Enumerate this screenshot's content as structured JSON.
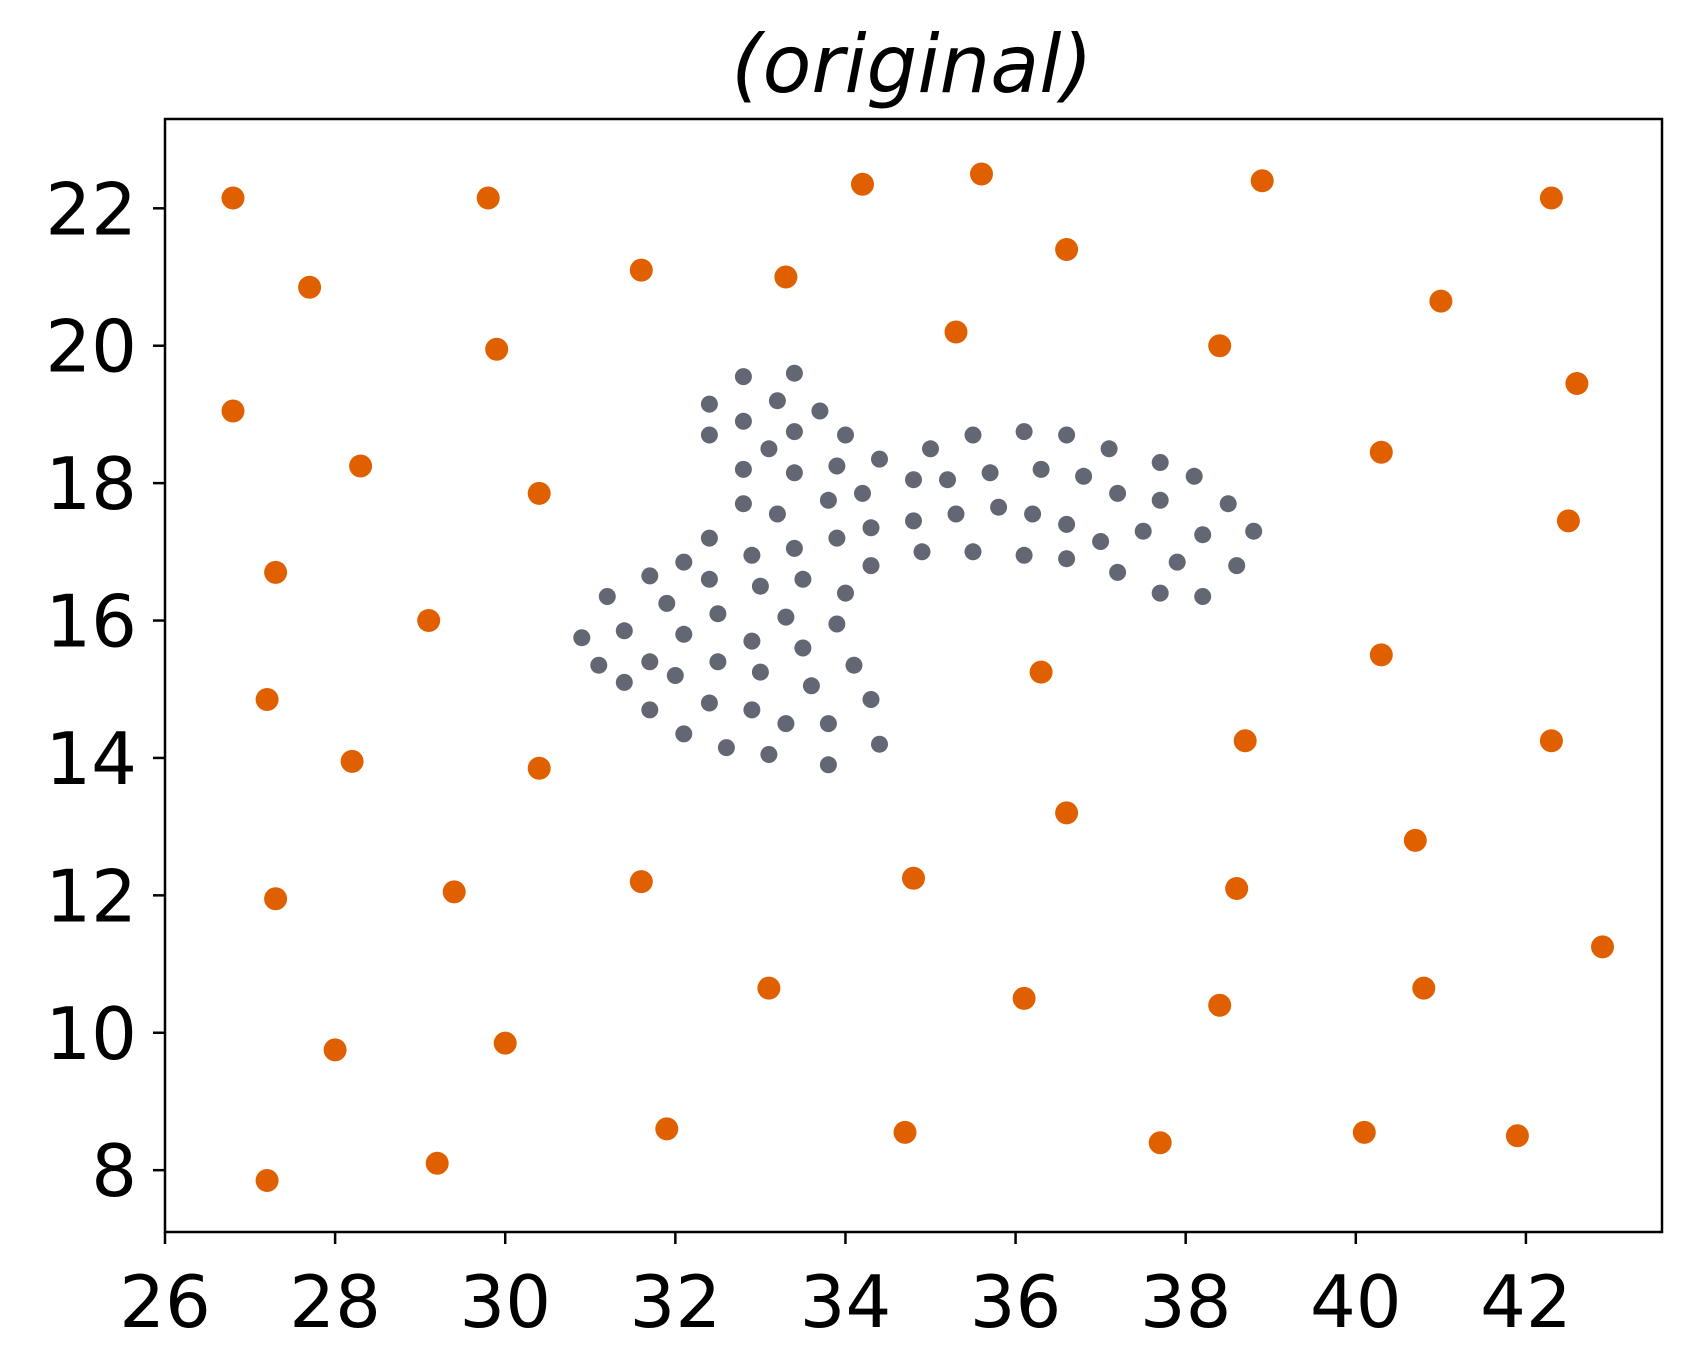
{
  "chart_data": {
    "type": "scatter",
    "title": "(original)",
    "xlabel": "",
    "ylabel": "",
    "xlim": [
      26,
      43.6
    ],
    "ylim": [
      7.1,
      23.3
    ],
    "x_ticks": [
      26,
      28,
      30,
      32,
      34,
      36,
      38,
      40,
      42
    ],
    "y_ticks": [
      8,
      10,
      12,
      14,
      16,
      18,
      20,
      22
    ],
    "grid": false,
    "legend": "none",
    "series": [
      {
        "color": "#e06000",
        "marker_size": "large",
        "points": [
          [
            26.8,
            22.15
          ],
          [
            29.8,
            22.15
          ],
          [
            34.2,
            22.35
          ],
          [
            35.6,
            22.5
          ],
          [
            38.9,
            22.4
          ],
          [
            42.3,
            22.15
          ],
          [
            27.7,
            20.85
          ],
          [
            31.6,
            21.1
          ],
          [
            33.3,
            21.0
          ],
          [
            36.6,
            21.4
          ],
          [
            29.9,
            19.95
          ],
          [
            35.3,
            20.2
          ],
          [
            38.4,
            20.0
          ],
          [
            41.0,
            20.65
          ],
          [
            26.8,
            19.05
          ],
          [
            42.6,
            19.45
          ],
          [
            28.3,
            18.25
          ],
          [
            30.4,
            17.85
          ],
          [
            40.3,
            18.45
          ],
          [
            27.3,
            16.7
          ],
          [
            29.1,
            16.0
          ],
          [
            42.5,
            17.45
          ],
          [
            27.2,
            14.85
          ],
          [
            36.3,
            15.25
          ],
          [
            40.3,
            15.5
          ],
          [
            28.2,
            13.95
          ],
          [
            30.4,
            13.85
          ],
          [
            36.6,
            13.2
          ],
          [
            38.7,
            14.25
          ],
          [
            42.3,
            14.25
          ],
          [
            27.3,
            11.95
          ],
          [
            29.4,
            12.05
          ],
          [
            31.6,
            12.2
          ],
          [
            34.8,
            12.25
          ],
          [
            38.6,
            12.1
          ],
          [
            40.7,
            12.8
          ],
          [
            33.1,
            10.65
          ],
          [
            36.1,
            10.5
          ],
          [
            38.4,
            10.4
          ],
          [
            40.8,
            10.65
          ],
          [
            42.9,
            11.25
          ],
          [
            28.0,
            9.75
          ],
          [
            30.0,
            9.85
          ],
          [
            27.2,
            7.85
          ],
          [
            29.2,
            8.1
          ],
          [
            31.9,
            8.6
          ],
          [
            34.7,
            8.55
          ],
          [
            37.7,
            8.4
          ],
          [
            40.1,
            8.55
          ],
          [
            41.9,
            8.5
          ]
        ]
      },
      {
        "color": "#636773",
        "marker_size": "small",
        "points": [
          [
            32.8,
            19.55
          ],
          [
            33.4,
            19.6
          ],
          [
            32.4,
            19.15
          ],
          [
            33.2,
            19.2
          ],
          [
            33.7,
            19.05
          ],
          [
            32.4,
            18.7
          ],
          [
            32.8,
            18.9
          ],
          [
            33.4,
            18.75
          ],
          [
            34.0,
            18.7
          ],
          [
            33.1,
            18.5
          ],
          [
            32.8,
            18.2
          ],
          [
            33.4,
            18.15
          ],
          [
            33.9,
            18.25
          ],
          [
            34.4,
            18.35
          ],
          [
            32.8,
            17.7
          ],
          [
            33.2,
            17.55
          ],
          [
            33.8,
            17.75
          ],
          [
            34.2,
            17.85
          ],
          [
            32.4,
            17.2
          ],
          [
            32.9,
            16.95
          ],
          [
            33.4,
            17.05
          ],
          [
            33.9,
            17.2
          ],
          [
            34.3,
            17.35
          ],
          [
            31.7,
            16.65
          ],
          [
            32.1,
            16.85
          ],
          [
            32.4,
            16.6
          ],
          [
            33.0,
            16.5
          ],
          [
            33.5,
            16.6
          ],
          [
            34.0,
            16.4
          ],
          [
            34.3,
            16.8
          ],
          [
            31.2,
            16.35
          ],
          [
            31.9,
            16.25
          ],
          [
            32.5,
            16.1
          ],
          [
            30.9,
            15.75
          ],
          [
            31.4,
            15.85
          ],
          [
            32.1,
            15.8
          ],
          [
            32.9,
            15.7
          ],
          [
            33.3,
            16.05
          ],
          [
            33.9,
            15.95
          ],
          [
            31.1,
            15.35
          ],
          [
            31.7,
            15.4
          ],
          [
            32.0,
            15.2
          ],
          [
            32.5,
            15.4
          ],
          [
            33.0,
            15.25
          ],
          [
            33.5,
            15.6
          ],
          [
            34.1,
            15.35
          ],
          [
            31.4,
            15.1
          ],
          [
            31.7,
            14.7
          ],
          [
            32.4,
            14.8
          ],
          [
            32.9,
            14.7
          ],
          [
            33.6,
            15.05
          ],
          [
            34.3,
            14.85
          ],
          [
            32.1,
            14.35
          ],
          [
            32.6,
            14.15
          ],
          [
            33.1,
            14.05
          ],
          [
            33.3,
            14.5
          ],
          [
            33.8,
            14.5
          ],
          [
            34.4,
            14.2
          ],
          [
            33.8,
            13.9
          ],
          [
            34.8,
            18.05
          ],
          [
            35.0,
            18.5
          ],
          [
            35.2,
            18.05
          ],
          [
            35.5,
            18.7
          ],
          [
            35.7,
            18.15
          ],
          [
            36.1,
            18.75
          ],
          [
            36.3,
            18.2
          ],
          [
            36.6,
            18.7
          ],
          [
            36.8,
            18.1
          ],
          [
            37.1,
            18.5
          ],
          [
            37.2,
            17.85
          ],
          [
            37.7,
            18.3
          ],
          [
            37.7,
            17.75
          ],
          [
            38.1,
            18.1
          ],
          [
            34.8,
            17.45
          ],
          [
            35.3,
            17.55
          ],
          [
            35.8,
            17.65
          ],
          [
            36.2,
            17.55
          ],
          [
            36.6,
            17.4
          ],
          [
            37.0,
            17.15
          ],
          [
            37.5,
            17.3
          ],
          [
            38.2,
            17.25
          ],
          [
            38.5,
            17.7
          ],
          [
            38.8,
            17.3
          ],
          [
            34.9,
            17.0
          ],
          [
            35.5,
            17.0
          ],
          [
            36.1,
            16.95
          ],
          [
            36.6,
            16.9
          ],
          [
            37.2,
            16.7
          ],
          [
            37.7,
            16.4
          ],
          [
            37.9,
            16.85
          ],
          [
            38.2,
            16.35
          ],
          [
            38.6,
            16.8
          ]
        ]
      }
    ]
  }
}
